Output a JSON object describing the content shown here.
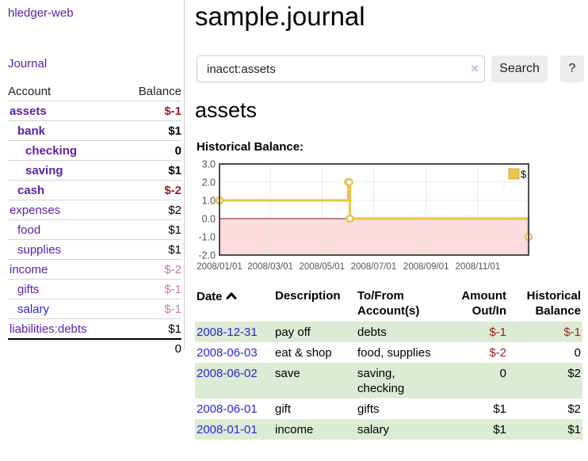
{
  "sidebar": {
    "brand": "hledger-web",
    "journal_link": "Journal",
    "table": {
      "col_account": "Account",
      "col_balance": "Balance",
      "rows": [
        {
          "name": "assets",
          "balance": "$-1"
        },
        {
          "name": "bank",
          "balance": "$1"
        },
        {
          "name": "checking",
          "balance": "0"
        },
        {
          "name": "saving",
          "balance": "$1"
        },
        {
          "name": "cash",
          "balance": "$-2"
        },
        {
          "name": "expenses",
          "balance": "$2"
        },
        {
          "name": "food",
          "balance": "$1"
        },
        {
          "name": "supplies",
          "balance": "$1"
        },
        {
          "name": "income",
          "balance": "$-2"
        },
        {
          "name": "gifts",
          "balance": "$-1"
        },
        {
          "name": "salary",
          "balance": "$-1"
        },
        {
          "name": "liabilities:debts",
          "balance": "$1"
        }
      ],
      "total": "0"
    }
  },
  "header": {
    "title": "sample.journal"
  },
  "search": {
    "value": "inacct:assets",
    "clear_icon": "×",
    "button_label": "Search",
    "help_label": "?"
  },
  "account_page": {
    "heading": "assets",
    "chart_title": "Historical Balance:"
  },
  "chart_data": {
    "type": "line",
    "step": true,
    "series": [
      {
        "name": "$",
        "points": [
          [
            "2008-01-01",
            1
          ],
          [
            "2008-06-01",
            2
          ],
          [
            "2008-06-02",
            2
          ],
          [
            "2008-06-03",
            0
          ],
          [
            "2008-12-31",
            -1
          ]
        ]
      }
    ],
    "xrange": [
      "2008-01-01",
      "2008-12-31"
    ],
    "ylim": [
      -2,
      3
    ],
    "y_ticks": [
      3,
      2,
      1,
      0,
      -1,
      -2
    ],
    "x_ticks": [
      {
        "date": "2008-01-01",
        "label": "2008/01/01"
      },
      {
        "date": "2008-03-01",
        "label": "2008/03/01"
      },
      {
        "date": "2008-05-01",
        "label": "2008/05/01"
      },
      {
        "date": "2008-07-01",
        "label": "2008/07/01"
      },
      {
        "date": "2008-09-01",
        "label": "2008/09/01"
      },
      {
        "date": "2008-11-01",
        "label": "2008/11/01"
      }
    ],
    "legend": {
      "position": "top-right"
    },
    "grid": true,
    "colors": {
      "line": "#e9c34b",
      "point_fill": "#ffffff",
      "negative_fill": "#fcdcdc",
      "zero_line": "#8e1111",
      "grid": "#e8e8e8",
      "border": "#4d4d4d",
      "tick_text": "#545454",
      "legend_box_border": "#d9ae2f"
    }
  },
  "register": {
    "headers": {
      "date": "Date",
      "description": "Description",
      "account": "To/From Account(s)",
      "amount": "Amount Out/In",
      "balance": "Historical Balance"
    },
    "rows": [
      {
        "date": "2008-12-31",
        "description": "pay off",
        "account": "debts",
        "amount": "$-1",
        "balance": "$-1"
      },
      {
        "date": "2008-06-03",
        "description": "eat & shop",
        "account": "food, supplies",
        "amount": "$-2",
        "balance": "0"
      },
      {
        "date": "2008-06-02",
        "description": "save",
        "account": "saving, checking",
        "amount": "0",
        "balance": "$2"
      },
      {
        "date": "2008-06-01",
        "description": "gift",
        "account": "gifts",
        "amount": "$1",
        "balance": "$2"
      },
      {
        "date": "2008-01-01",
        "description": "income",
        "account": "salary",
        "amount": "$1",
        "balance": "$1"
      }
    ]
  },
  "colors": {
    "accent_purple": "#5c21a9",
    "link_blue": "#2828dd",
    "negative_strong": "#9d1d1e",
    "negative_soft": "#c28184",
    "row_stripe_green": "#dcebd3"
  }
}
